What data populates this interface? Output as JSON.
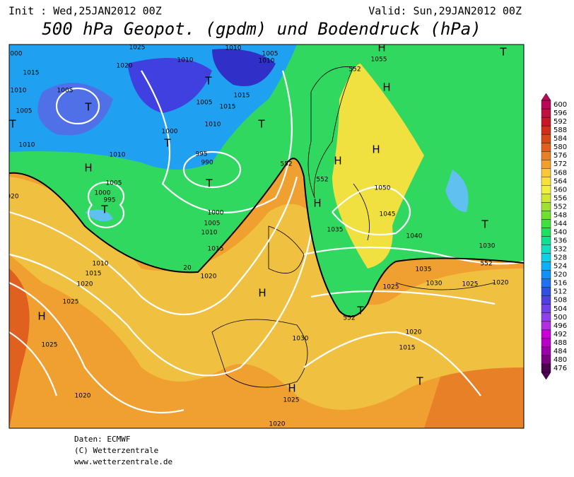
{
  "header": {
    "init": "Init : Wed,25JAN2012 00Z",
    "valid": "Valid: Sun,29JAN2012 00Z",
    "title": "500 hPa Geopot. (gpdm) und Bodendruck (hPa)"
  },
  "map": {
    "labels": [
      "H",
      "T",
      "1055",
      "H",
      "T",
      "1005",
      "T",
      "1010",
      "1020",
      "1015",
      "1010",
      "1005",
      "T",
      "1010",
      "H",
      "1010",
      "1005",
      "1000",
      "995",
      "T",
      "1000",
      "T",
      "995",
      "990",
      "T",
      "1000",
      "1005",
      "1010",
      "1015",
      "1020",
      "1010",
      "1015",
      "1020",
      "1025",
      "H",
      "1025",
      "1020",
      "H",
      "1030",
      "H",
      "1025",
      "1020",
      "T",
      "1015",
      "1015",
      "1005",
      "1010",
      "H",
      "H",
      "1050",
      "1045",
      "1035",
      "1040",
      "1030",
      "T",
      "H",
      "1035",
      "1030",
      "1025",
      "1020",
      "1025",
      "T",
      "1020",
      "1015",
      "T",
      "1010",
      "1025",
      "1010",
      "1005",
      "1000",
      "020",
      "20",
      "552",
      "552",
      "552",
      "552",
      "552",
      "552"
    ]
  },
  "colorbar": {
    "ticks": [
      476,
      480,
      484,
      488,
      492,
      496,
      500,
      504,
      508,
      512,
      516,
      520,
      524,
      528,
      532,
      536,
      540,
      544,
      548,
      552,
      556,
      560,
      564,
      568,
      572,
      576,
      580,
      584,
      588,
      592,
      596,
      600
    ],
    "colors": [
      "#4b0050",
      "#7a0080",
      "#9a00a8",
      "#b800c8",
      "#c800d8",
      "#b030e0",
      "#9040e8",
      "#7040e8",
      "#5040e0",
      "#3050e0",
      "#2070f0",
      "#1090f8",
      "#10b0f8",
      "#10d0e8",
      "#10e0c0",
      "#10e090",
      "#20e060",
      "#40e040",
      "#70e030",
      "#a0e030",
      "#d0e830",
      "#f0f040",
      "#f8e040",
      "#f8c838",
      "#f0a030",
      "#e88028",
      "#e06020",
      "#d84818",
      "#d03018",
      "#c81828",
      "#c01040",
      "#b80858"
    ]
  },
  "footer": [
    "Daten: ECMWF",
    "(C) Wetterzentrale",
    "www.wetterzentrale.de"
  ]
}
